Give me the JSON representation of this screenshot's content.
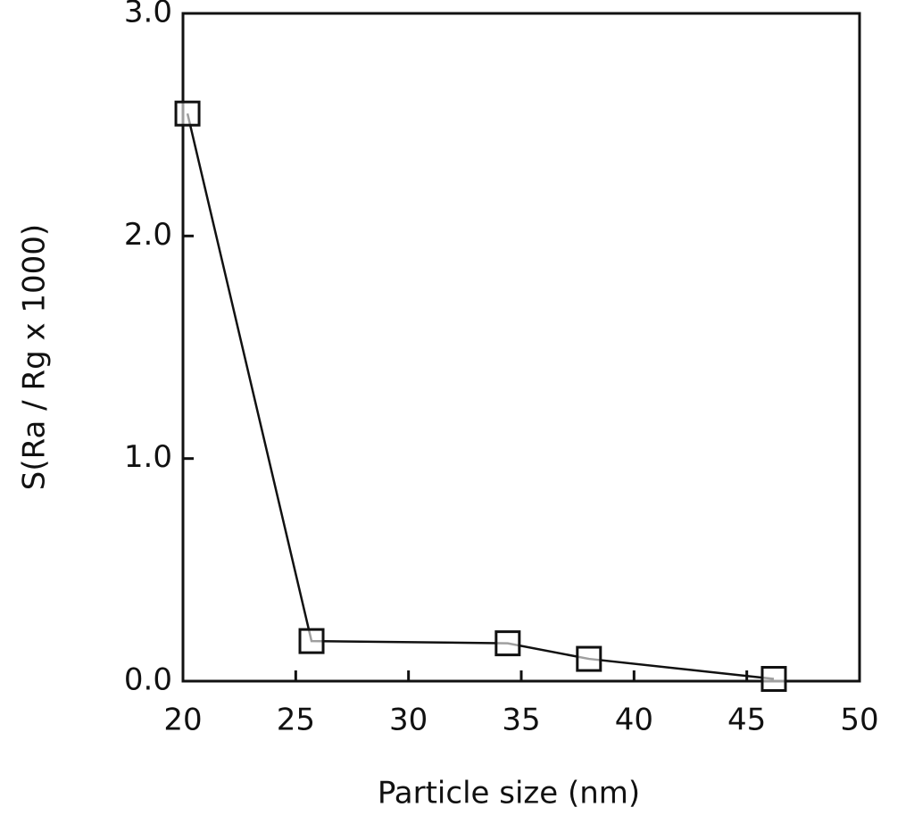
{
  "chart_data": {
    "type": "line",
    "x_label": "Particle size (nm)",
    "y_label": "S(Ra / Rg x 1000)",
    "x": [
      20.2,
      25.7,
      34.4,
      38.0,
      46.2
    ],
    "values": [
      2.55,
      0.18,
      0.17,
      0.1,
      0.01
    ],
    "color": "#111111",
    "marker": "square",
    "xlim": [
      20,
      50
    ],
    "xticks": [
      20,
      25,
      30,
      35,
      40,
      45,
      50
    ],
    "ylim": [
      0,
      3
    ],
    "yticks": [
      {
        "value": 0,
        "label": "0.0"
      },
      {
        "value": 1,
        "label": "1.0"
      },
      {
        "value": 2,
        "label": "2.0"
      },
      {
        "value": 3,
        "label": "3.0"
      }
    ],
    "grid": false
  }
}
